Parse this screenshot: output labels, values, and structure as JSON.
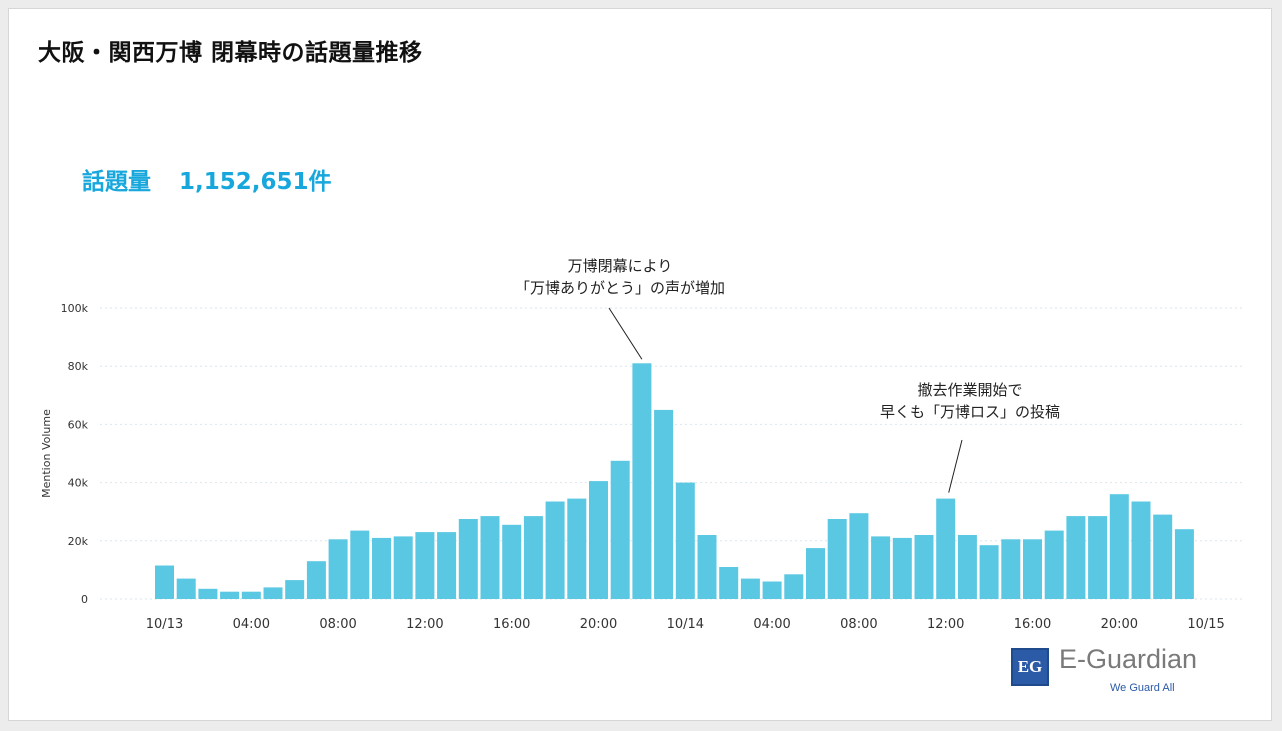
{
  "title": "大阪・関西万博 閉幕時の話題量推移",
  "total": {
    "label": "話題量",
    "value": "1,152,651件"
  },
  "annotations": [
    {
      "lines": [
        "万博閉幕により",
        "「万博ありがとう」の声が増加"
      ]
    },
    {
      "lines": [
        "撤去作業開始で",
        "早くも「万博ロス」の投稿"
      ]
    }
  ],
  "logo": {
    "mark": "EG",
    "name": "E-Guardian",
    "tagline": "We Guard All"
  },
  "chart_data": {
    "type": "bar",
    "ylabel": "Mention Volume",
    "ylim": [
      0,
      100000
    ],
    "y_ticks": [
      0,
      20000,
      40000,
      60000,
      80000,
      100000
    ],
    "y_tick_labels": [
      "0",
      "20k",
      "40k",
      "60k",
      "80k",
      "100k"
    ],
    "x_tick_labels": [
      "10/13",
      "04:00",
      "08:00",
      "12:00",
      "16:00",
      "20:00",
      "10/14",
      "04:00",
      "08:00",
      "12:00",
      "16:00",
      "20:00",
      "10/15"
    ],
    "bar_color": "#5ac8e2",
    "grid": true,
    "categories": [
      "10/13 00:00",
      "01:00",
      "02:00",
      "03:00",
      "04:00",
      "05:00",
      "06:00",
      "07:00",
      "08:00",
      "09:00",
      "10:00",
      "11:00",
      "12:00",
      "13:00",
      "14:00",
      "15:00",
      "16:00",
      "17:00",
      "18:00",
      "19:00",
      "20:00",
      "21:00",
      "22:00",
      "23:00",
      "10/14 00:00",
      "01:00",
      "02:00",
      "03:00",
      "04:00",
      "05:00",
      "06:00",
      "07:00",
      "08:00",
      "09:00",
      "10:00",
      "11:00",
      "12:00",
      "13:00",
      "14:00",
      "15:00",
      "16:00",
      "17:00",
      "18:00",
      "19:00",
      "20:00",
      "21:00",
      "22:00",
      "23:00"
    ],
    "values": [
      11500,
      7000,
      3500,
      2500,
      2500,
      4000,
      6500,
      13000,
      20500,
      23500,
      21000,
      21500,
      23000,
      23000,
      27500,
      28500,
      25500,
      28500,
      33500,
      34500,
      40500,
      47500,
      81000,
      65000,
      40000,
      22000,
      11000,
      7000,
      6000,
      8500,
      17500,
      27500,
      29500,
      21500,
      21000,
      22000,
      34500,
      22000,
      18500,
      20500,
      20500,
      23500,
      28500,
      28500,
      36000,
      33500,
      29000,
      24000
    ]
  }
}
